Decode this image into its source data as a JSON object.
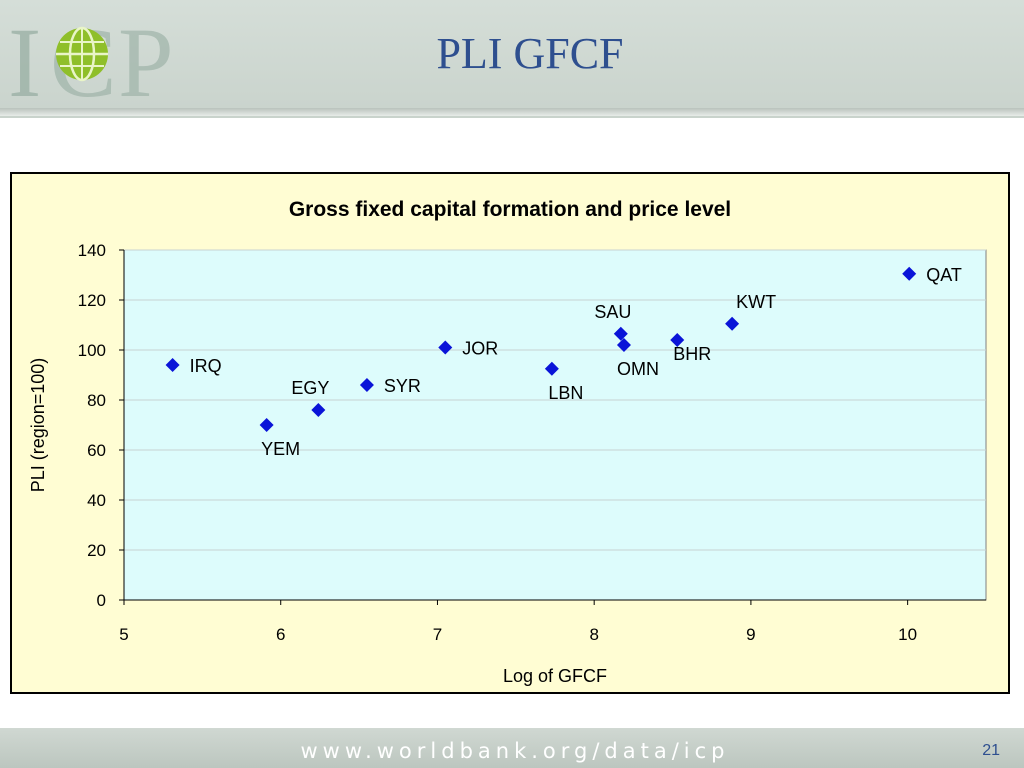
{
  "slide": {
    "title": "PLI GFCF",
    "footer_url": "www.worldbank.org/data/icp",
    "page_number": "21"
  },
  "logo": {
    "text": "ICP"
  },
  "colors": {
    "title": "#2e4f8f",
    "plot_background": "#ddfcfc",
    "chart_background": "#fffdd3",
    "marker": "#0a14d8"
  },
  "chart_data": {
    "type": "scatter",
    "title": "Gross fixed capital formation and price level",
    "xlabel": "Log of GFCF",
    "ylabel": "PLI (region=100)",
    "xlim": [
      5,
      10.5
    ],
    "ylim": [
      0,
      140
    ],
    "xticks": [
      5,
      6,
      7,
      8,
      9,
      10
    ],
    "yticks": [
      0,
      20,
      40,
      60,
      80,
      100,
      120,
      140
    ],
    "grid": "horizontal",
    "legend": "none",
    "points": [
      {
        "label": "IRQ",
        "x": 5.31,
        "y": 94,
        "label_pos": "right"
      },
      {
        "label": "YEM",
        "x": 5.91,
        "y": 70,
        "label_pos": "below"
      },
      {
        "label": "EGY",
        "x": 6.24,
        "y": 76,
        "label_pos": "above"
      },
      {
        "label": "SYR",
        "x": 6.55,
        "y": 86,
        "label_pos": "right"
      },
      {
        "label": "JOR",
        "x": 7.05,
        "y": 101,
        "label_pos": "right"
      },
      {
        "label": "LBN",
        "x": 7.73,
        "y": 92.5,
        "label_pos": "below"
      },
      {
        "label": "SAU",
        "x": 8.17,
        "y": 106.5,
        "label_pos": "above"
      },
      {
        "label": "OMN",
        "x": 8.19,
        "y": 102,
        "label_pos": "below"
      },
      {
        "label": "BHR",
        "x": 8.53,
        "y": 104,
        "label_pos": "below-right"
      },
      {
        "label": "KWT",
        "x": 8.88,
        "y": 110.5,
        "label_pos": "above-right"
      },
      {
        "label": "QAT",
        "x": 10.01,
        "y": 130.5,
        "label_pos": "right"
      }
    ]
  }
}
